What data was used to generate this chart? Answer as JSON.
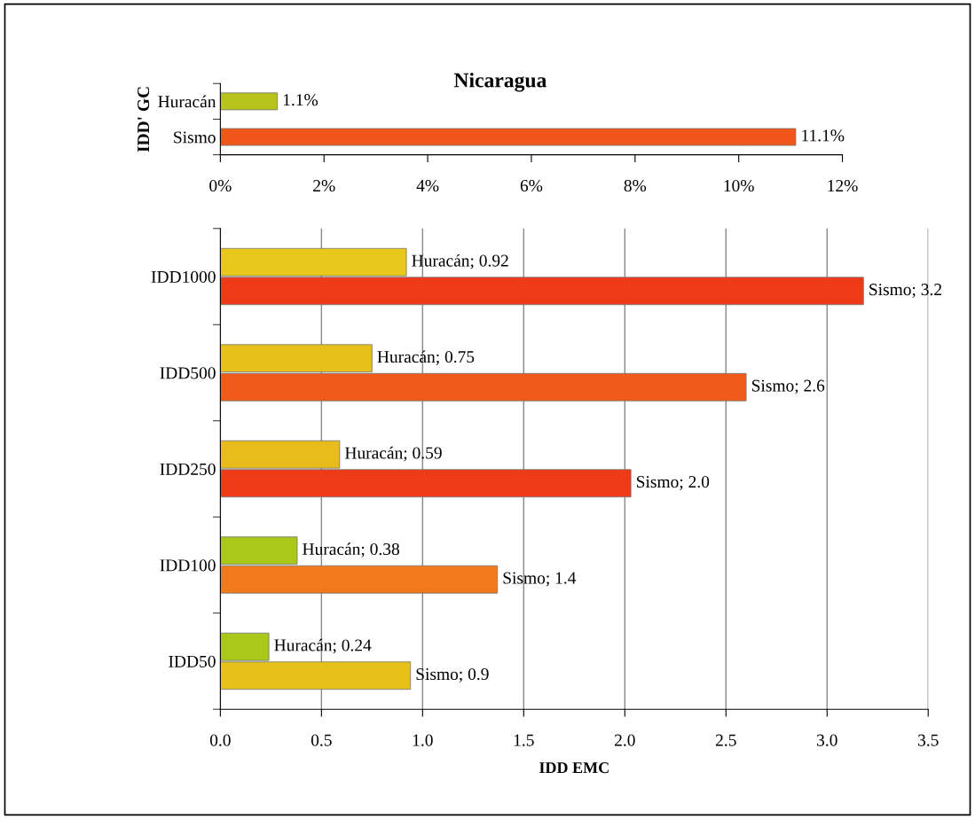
{
  "chart_data": [
    {
      "type": "bar",
      "title": "Nicaragua",
      "ylabel": "IDD' GC",
      "orientation": "horizontal",
      "categories": [
        "Huracán",
        "Sismo"
      ],
      "values": [
        1.1,
        11.1
      ],
      "colors": [
        "#b8c41c",
        "#f0561a"
      ],
      "value_labels": [
        "1.1%",
        "11.1%"
      ],
      "xlim": [
        0,
        12
      ],
      "xticks": [
        {
          "value": 0,
          "label": "0%"
        },
        {
          "value": 2,
          "label": "2%"
        },
        {
          "value": 4,
          "label": "4%"
        },
        {
          "value": 6,
          "label": "6%"
        },
        {
          "value": 8,
          "label": "8%"
        },
        {
          "value": 10,
          "label": "10%"
        },
        {
          "value": 12,
          "label": "12%"
        }
      ],
      "grid": false,
      "legend": false
    },
    {
      "type": "bar",
      "xlabel": "IDD EMC",
      "orientation": "horizontal",
      "categories": [
        "IDD1000",
        "IDD500",
        "IDD250",
        "IDD100",
        "IDD50"
      ],
      "series": [
        {
          "colors": [
            "#e8c81a",
            "#e8c01a",
            "#e8bc1a",
            "#a8c81a",
            "#a8c81a"
          ],
          "values": [
            0.92,
            0.75,
            0.59,
            0.38,
            0.24
          ],
          "value_labels": [
            "Huracán; 0.92",
            "Huracán; 0.75",
            "Huracán; 0.59",
            "Huracán; 0.38",
            "Huracán; 0.24"
          ]
        },
        {
          "colors": [
            "#ee3a16",
            "#f05a1a",
            "#ee3a16",
            "#f07a1c",
            "#e8c01a"
          ],
          "values": [
            3.18,
            2.6,
            2.03,
            1.37,
            0.94
          ],
          "value_labels": [
            "Sismo; 3.2",
            "Sismo; 2.6",
            "Sismo; 2.0",
            "Sismo; 1.4",
            "Sismo; 0.9"
          ]
        }
      ],
      "xlim": [
        0,
        3.5
      ],
      "xticks": [
        {
          "value": 0,
          "label": "0.0"
        },
        {
          "value": 0.5,
          "label": "0.5"
        },
        {
          "value": 1,
          "label": "1.0"
        },
        {
          "value": 1.5,
          "label": "1.5"
        },
        {
          "value": 2,
          "label": "2.0"
        },
        {
          "value": 2.5,
          "label": "2.5"
        },
        {
          "value": 3,
          "label": "3.0"
        },
        {
          "value": 3.5,
          "label": "3.5"
        }
      ],
      "grid": "x",
      "legend": false
    }
  ]
}
